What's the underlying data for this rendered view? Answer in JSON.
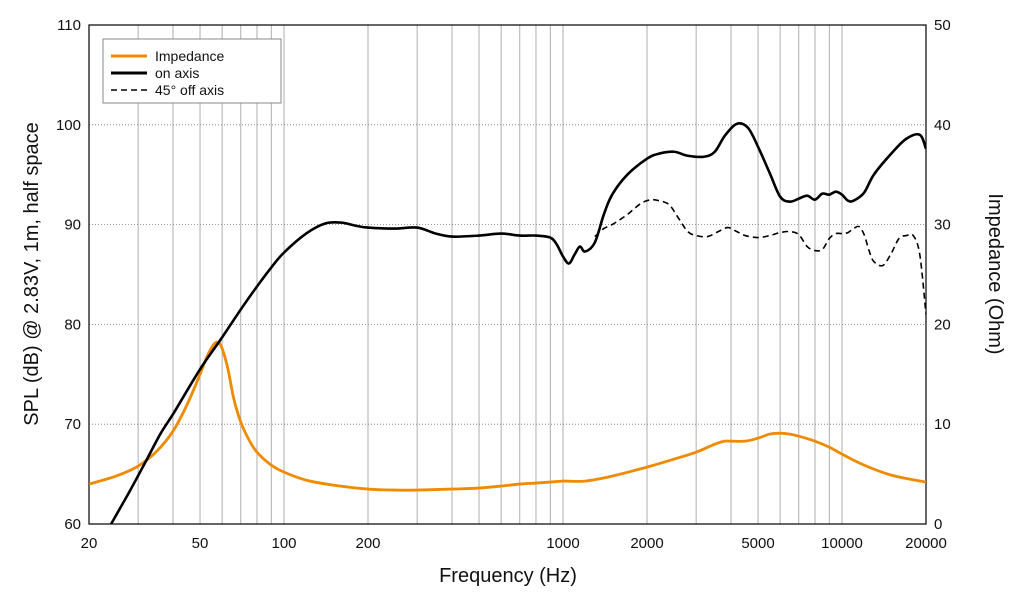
{
  "chart_data": {
    "type": "line",
    "xlabel": "Frequency (Hz)",
    "ylabel_left": "SPL (dB) @ 2.83V, 1m, half space",
    "ylabel_right": "Impedance (Ohm)",
    "x_scale": "log",
    "xlim": [
      20,
      20000
    ],
    "ylim_left": [
      60,
      110
    ],
    "ylim_right": [
      0,
      50
    ],
    "x_ticks": [
      20,
      50,
      100,
      200,
      1000,
      2000,
      5000,
      10000,
      20000
    ],
    "x_tick_labels": [
      "20",
      "50",
      "100",
      "200",
      "1000",
      "2000",
      "5000",
      "10000",
      "20000"
    ],
    "y_left_ticks": [
      60,
      70,
      80,
      90,
      100,
      110
    ],
    "y_left_tick_labels": [
      "60",
      "70",
      "80",
      "90",
      "100",
      "110"
    ],
    "y_right_ticks": [
      0,
      10,
      20,
      30,
      40,
      50
    ],
    "y_right_tick_labels": [
      "0",
      "10",
      "20",
      "30",
      "40",
      "50"
    ],
    "grid": true,
    "legend_position": "top-left",
    "series": [
      {
        "name": "Impedance",
        "axis": "right",
        "color": "#f08a00",
        "style": "solid",
        "x": [
          20,
          25,
          30,
          35,
          40,
          45,
          50,
          53,
          56,
          58,
          60,
          63,
          66,
          70,
          75,
          80,
          90,
          100,
          120,
          150,
          200,
          250,
          300,
          400,
          500,
          600,
          700,
          800,
          900,
          1000,
          1200,
          1500,
          2000,
          2500,
          3000,
          3500,
          3800,
          4000,
          4500,
          5000,
          5500,
          6000,
          6500,
          7000,
          8000,
          9000,
          10000,
          12000,
          15000,
          20000
        ],
        "y": [
          4.0,
          4.8,
          5.8,
          7.3,
          9.3,
          12.0,
          15.0,
          16.8,
          18.0,
          18.2,
          17.6,
          15.5,
          12.6,
          10.2,
          8.4,
          7.2,
          5.9,
          5.2,
          4.4,
          3.9,
          3.5,
          3.4,
          3.4,
          3.5,
          3.6,
          3.8,
          4.0,
          4.1,
          4.2,
          4.3,
          4.3,
          4.8,
          5.7,
          6.5,
          7.2,
          8.0,
          8.3,
          8.3,
          8.3,
          8.6,
          9.0,
          9.1,
          9.0,
          8.8,
          8.3,
          7.7,
          7.0,
          5.9,
          4.9,
          4.2
        ]
      },
      {
        "name": "on axis",
        "axis": "left",
        "color": "#000000",
        "style": "solid",
        "x": [
          24,
          28,
          32,
          36,
          40,
          45,
          50,
          55,
          60,
          70,
          80,
          90,
          100,
          120,
          140,
          160,
          180,
          200,
          250,
          300,
          350,
          400,
          500,
          600,
          700,
          800,
          900,
          950,
          1000,
          1050,
          1100,
          1150,
          1200,
          1300,
          1400,
          1500,
          1700,
          2000,
          2200,
          2500,
          2800,
          3200,
          3500,
          3800,
          4200,
          4600,
          5000,
          5500,
          6000,
          6500,
          7000,
          7500,
          8000,
          8500,
          9000,
          9500,
          10000,
          10500,
          11000,
          12000,
          13000,
          15000,
          17000,
          19000,
          20000
        ],
        "y": [
          60.0,
          63.3,
          66.3,
          69.0,
          71.0,
          73.4,
          75.5,
          77.2,
          78.7,
          81.5,
          83.8,
          85.7,
          87.2,
          89.1,
          90.1,
          90.2,
          89.9,
          89.7,
          89.6,
          89.7,
          89.1,
          88.8,
          88.9,
          89.1,
          88.9,
          88.9,
          88.7,
          88.0,
          86.8,
          86.1,
          87.0,
          87.8,
          87.3,
          88.2,
          91.0,
          93.0,
          95.0,
          96.6,
          97.1,
          97.3,
          96.9,
          96.8,
          97.3,
          98.9,
          100.1,
          99.7,
          97.8,
          95.2,
          92.8,
          92.3,
          92.6,
          92.9,
          92.5,
          93.1,
          93.0,
          93.3,
          93.0,
          92.4,
          92.4,
          93.2,
          95.0,
          97.1,
          98.6,
          99.0,
          97.6
        ]
      },
      {
        "name": "45° off axis",
        "axis": "left",
        "color": "#000000",
        "style": "dashed",
        "x": [
          1300,
          1400,
          1500,
          1600,
          1700,
          1800,
          1900,
          2000,
          2100,
          2200,
          2400,
          2600,
          2800,
          3000,
          3300,
          3600,
          3900,
          4200,
          4500,
          5000,
          5500,
          6000,
          6500,
          7000,
          7500,
          8000,
          8500,
          9000,
          9500,
          10000,
          10500,
          11000,
          11500,
          12000,
          12500,
          13000,
          14000,
          15000,
          16000,
          17000,
          18000,
          19000,
          20000
        ],
        "y": [
          88.8,
          89.6,
          90.0,
          90.5,
          91.0,
          91.6,
          92.1,
          92.4,
          92.5,
          92.4,
          92.0,
          90.6,
          89.3,
          88.9,
          88.8,
          89.3,
          89.7,
          89.3,
          88.9,
          88.7,
          88.9,
          89.2,
          89.3,
          89.0,
          87.8,
          87.4,
          87.5,
          88.6,
          89.1,
          89.1,
          89.2,
          89.6,
          89.8,
          89.0,
          87.4,
          86.3,
          85.9,
          87.1,
          88.6,
          88.9,
          88.9,
          87.0,
          81.0
        ]
      }
    ]
  }
}
